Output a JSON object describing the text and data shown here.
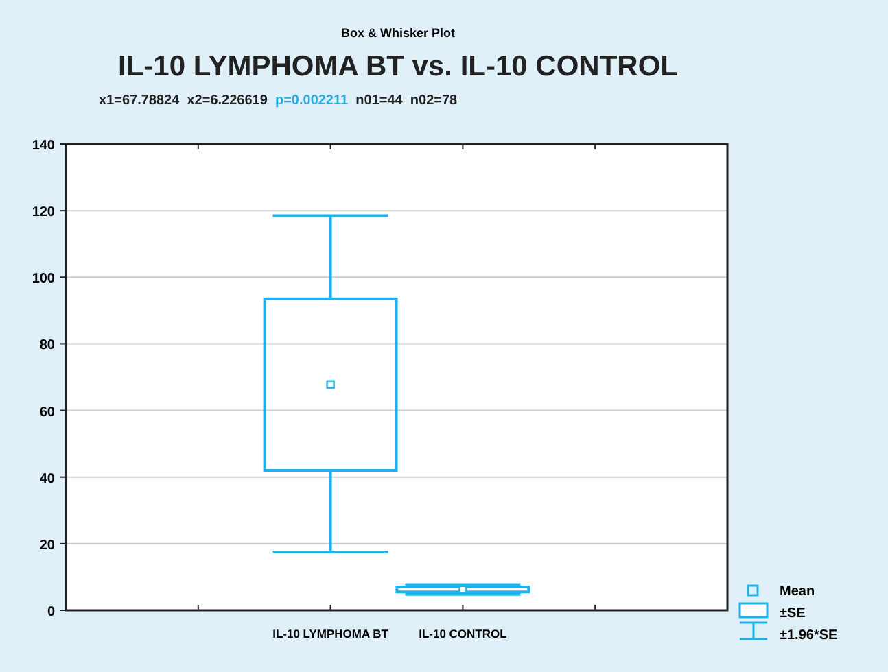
{
  "chart_data": {
    "type": "box",
    "title": "IL-10 LYMPHOMA BT vs. IL-10 CONTROL",
    "subtitle": "x1=67.78824  x2=6.226619  p=0.002211  n01=44  n02=78",
    "annotations": [
      "Box & Whisker Plot",
      "Mean",
      "±SE",
      "±1.96*SE"
    ],
    "categories": [
      "IL-10 LYMPHOMA BT",
      "IL-10 CONTROL"
    ],
    "color": "#1fb2ea",
    "boxes": [
      {
        "low": 17.5,
        "q1": 42,
        "median": 67.8,
        "q3": 93.5,
        "high": 118.5
      },
      {
        "low": 4.8,
        "q1": 5.5,
        "median": 6.2,
        "q3": 7,
        "high": 7.7
      }
    ],
    "ylim": [
      0,
      140
    ],
    "yticks": [
      0,
      20,
      40,
      60,
      80,
      100,
      120,
      140
    ],
    "grid": "y"
  }
}
